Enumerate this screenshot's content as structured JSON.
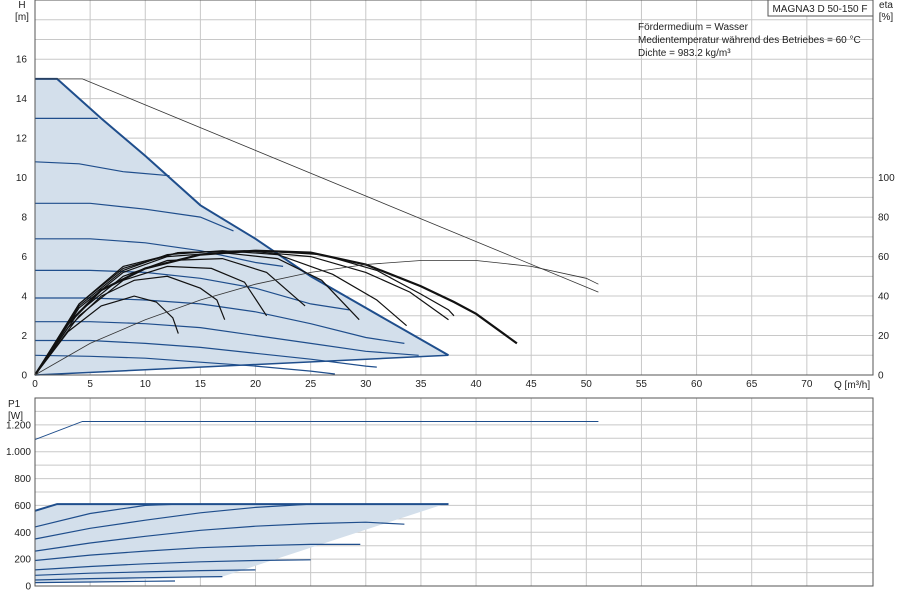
{
  "model": "MAGNA3 D 50-150 F",
  "info_lines": [
    "Fördermedium = Wasser",
    "Medientemperatur während des Betriebes = 60 °C",
    "Dichte = 983.2 kg/m³"
  ],
  "colors": {
    "curve": "#1f4e8c",
    "fill": "#d3dfeb",
    "eff": "#111111",
    "grid": "#c8c8c8"
  },
  "chart_data": [
    {
      "type": "line",
      "y_title": "H",
      "y_unit": "[m]",
      "y2_title": "eta",
      "y2_unit": "[%]",
      "x_title": "Q [m³/h]",
      "xlim": [
        0,
        76
      ],
      "ylim": [
        0,
        19
      ],
      "y2lim": [
        0,
        190
      ],
      "x_ticks": [
        0,
        5,
        10,
        15,
        20,
        25,
        30,
        35,
        40,
        45,
        50,
        55,
        60,
        65,
        70
      ],
      "y_ticks": [
        0,
        2,
        4,
        6,
        8,
        10,
        12,
        14,
        16
      ],
      "y2_ticks": [
        0,
        20,
        40,
        60,
        80,
        100
      ],
      "envelope": {
        "top": [
          [
            0,
            15
          ],
          [
            2,
            15
          ],
          [
            6,
            13
          ],
          [
            10,
            11.1
          ],
          [
            15,
            8.6
          ],
          [
            20,
            6.9
          ],
          [
            25,
            5.0
          ],
          [
            30,
            3.4
          ],
          [
            37.5,
            1.0
          ]
        ],
        "bottom": [
          [
            0,
            0
          ],
          [
            37.5,
            1.0
          ]
        ]
      },
      "speed_curves": [
        {
          "points": [
            [
              0,
              13.0
            ],
            [
              3,
              13.0
            ],
            [
              5.7,
              13.0
            ]
          ]
        },
        {
          "points": [
            [
              0,
              10.8
            ],
            [
              4,
              10.7
            ],
            [
              8,
              10.3
            ],
            [
              12.2,
              10.1
            ]
          ]
        },
        {
          "points": [
            [
              0,
              8.7
            ],
            [
              5,
              8.7
            ],
            [
              10,
              8.4
            ],
            [
              15,
              8.0
            ],
            [
              18,
              7.3
            ]
          ]
        },
        {
          "points": [
            [
              0,
              6.9
            ],
            [
              5,
              6.9
            ],
            [
              10,
              6.7
            ],
            [
              15,
              6.3
            ],
            [
              20,
              5.7
            ],
            [
              22.5,
              5.5
            ]
          ]
        },
        {
          "points": [
            [
              0,
              5.3
            ],
            [
              5,
              5.3
            ],
            [
              10,
              5.2
            ],
            [
              15,
              4.9
            ],
            [
              20,
              4.4
            ],
            [
              25,
              3.6
            ],
            [
              28.5,
              3.3
            ]
          ]
        },
        {
          "points": [
            [
              0,
              3.9
            ],
            [
              5,
              3.9
            ],
            [
              10,
              3.8
            ],
            [
              15,
              3.6
            ],
            [
              20,
              3.2
            ],
            [
              25,
              2.6
            ],
            [
              30,
              1.9
            ],
            [
              33.5,
              1.6
            ]
          ]
        },
        {
          "points": [
            [
              0,
              2.7
            ],
            [
              5,
              2.7
            ],
            [
              10,
              2.6
            ],
            [
              15,
              2.4
            ],
            [
              20,
              2.0
            ],
            [
              25,
              1.6
            ],
            [
              30,
              1.2
            ],
            [
              34.8,
              1.0
            ]
          ]
        },
        {
          "points": [
            [
              0,
              1.75
            ],
            [
              5,
              1.75
            ],
            [
              10,
              1.6
            ],
            [
              15,
              1.4
            ],
            [
              20,
              1.1
            ],
            [
              25,
              0.8
            ],
            [
              30,
              0.45
            ],
            [
              31,
              0.4
            ]
          ]
        },
        {
          "points": [
            [
              0,
              1.0
            ],
            [
              5,
              0.95
            ],
            [
              10,
              0.85
            ],
            [
              15,
              0.65
            ],
            [
              20,
              0.45
            ],
            [
              25,
              0.2
            ],
            [
              27.2,
              0.05
            ]
          ]
        }
      ],
      "eta_curves": [
        {
          "points": [
            [
              0,
              0
            ],
            [
              3,
              22
            ],
            [
              6,
              35
            ],
            [
              9,
              40
            ],
            [
              11,
              37
            ],
            [
              12.5,
              29
            ],
            [
              13,
              21
            ]
          ]
        },
        {
          "points": [
            [
              0,
              0
            ],
            [
              3,
              24
            ],
            [
              6,
              40
            ],
            [
              9,
              48
            ],
            [
              12,
              50
            ],
            [
              15,
              44
            ],
            [
              16.5,
              38
            ],
            [
              17.2,
              28
            ]
          ]
        },
        {
          "points": [
            [
              0,
              0
            ],
            [
              4,
              30
            ],
            [
              8,
              48
            ],
            [
              12,
              55
            ],
            [
              16,
              54
            ],
            [
              19,
              47
            ],
            [
              21,
              30
            ]
          ]
        },
        {
          "points": [
            [
              0,
              0
            ],
            [
              4,
              32
            ],
            [
              8,
              50
            ],
            [
              12,
              58
            ],
            [
              17,
              59
            ],
            [
              21,
              52
            ],
            [
              24.5,
              35
            ]
          ]
        },
        {
          "points": [
            [
              0,
              0
            ],
            [
              4,
              34
            ],
            [
              8,
              52
            ],
            [
              12,
              60
            ],
            [
              17,
              62
            ],
            [
              22,
              59
            ],
            [
              26,
              48
            ],
            [
              29.4,
              28
            ]
          ]
        },
        {
          "points": [
            [
              0,
              0
            ],
            [
              4,
              35
            ],
            [
              8,
              53
            ],
            [
              12,
              61
            ],
            [
              17,
              63
            ],
            [
              22,
              61
            ],
            [
              27,
              51
            ],
            [
              31,
              38
            ],
            [
              33.7,
              25
            ]
          ]
        },
        {
          "points": [
            [
              0,
              0
            ],
            [
              4,
              36
            ],
            [
              8,
              54
            ],
            [
              13,
              62
            ],
            [
              19,
              63
            ],
            [
              25,
              60
            ],
            [
              30,
              52
            ],
            [
              34,
              42
            ],
            [
              37.5,
              28
            ]
          ]
        },
        {
          "points": [
            [
              0,
              0
            ],
            [
              4,
              36
            ],
            [
              8,
              55
            ],
            [
              13,
              62
            ],
            [
              20,
              63
            ],
            [
              26,
              61
            ],
            [
              31,
              53
            ],
            [
              35,
              41
            ],
            [
              37.5,
              33
            ],
            [
              38,
              30
            ]
          ]
        }
      ],
      "max_curve": {
        "points": [
          [
            0,
            0
          ],
          [
            3,
            26
          ],
          [
            6,
            43
          ],
          [
            10,
            54
          ],
          [
            15,
            61
          ],
          [
            20,
            63
          ],
          [
            25,
            62
          ],
          [
            30,
            56
          ],
          [
            35,
            45
          ],
          [
            38,
            37
          ],
          [
            40,
            31
          ],
          [
            43.7,
            16
          ]
        ]
      },
      "ref_head": {
        "points": [
          [
            0,
            15
          ],
          [
            4.3,
            15
          ],
          [
            51.1,
            4.2
          ]
        ]
      },
      "ref_eta": {
        "points": [
          [
            0,
            0
          ],
          [
            5,
            16
          ],
          [
            10,
            28
          ],
          [
            15,
            38
          ],
          [
            20,
            46
          ],
          [
            25,
            52
          ],
          [
            30,
            56
          ],
          [
            35,
            58
          ],
          [
            40,
            58
          ],
          [
            45,
            55
          ],
          [
            50,
            49
          ],
          [
            51.1,
            46
          ]
        ]
      }
    },
    {
      "type": "line",
      "y_title": "P1",
      "y_unit": "[W]",
      "xlim": [
        0,
        76
      ],
      "ylim": [
        0,
        1400
      ],
      "x_ticks": [
        0,
        5,
        10,
        15,
        20,
        25,
        30,
        35,
        40,
        45,
        50,
        55,
        60,
        65,
        70
      ],
      "y_ticks": [
        0,
        200,
        400,
        600,
        800,
        1000,
        1200
      ],
      "y_tick_labels": [
        "0",
        "200",
        "400",
        "600",
        "800",
        "1.000",
        "1.200"
      ],
      "envelope": {
        "top": [
          [
            0,
            560
          ],
          [
            2,
            610
          ],
          [
            37.5,
            610
          ]
        ],
        "bottom": [
          [
            0,
            20
          ],
          [
            17,
            70
          ],
          [
            37.5,
            620
          ]
        ]
      },
      "power_curves": [
        {
          "points": [
            [
              0,
              560
            ],
            [
              2,
              610
            ],
            [
              37.5,
              610
            ]
          ]
        },
        {
          "points": [
            [
              0,
              440
            ],
            [
              5,
              540
            ],
            [
              10,
              600
            ],
            [
              13,
              610
            ]
          ]
        },
        {
          "points": [
            [
              0,
              350
            ],
            [
              5,
              430
            ],
            [
              10,
              490
            ],
            [
              15,
              545
            ],
            [
              20,
              585
            ],
            [
              25,
              610
            ]
          ]
        },
        {
          "points": [
            [
              0,
              260
            ],
            [
              5,
              320
            ],
            [
              10,
              370
            ],
            [
              15,
              415
            ],
            [
              20,
              445
            ],
            [
              25,
              465
            ],
            [
              30,
              475
            ],
            [
              33.5,
              460
            ]
          ]
        },
        {
          "points": [
            [
              0,
              190
            ],
            [
              5,
              230
            ],
            [
              10,
              260
            ],
            [
              15,
              285
            ],
            [
              20,
              300
            ],
            [
              25,
              310
            ],
            [
              29.5,
              310
            ]
          ]
        },
        {
          "points": [
            [
              0,
              120
            ],
            [
              5,
              145
            ],
            [
              10,
              165
            ],
            [
              15,
              180
            ],
            [
              20,
              190
            ],
            [
              25,
              195
            ]
          ]
        },
        {
          "points": [
            [
              0,
              80
            ],
            [
              5,
              95
            ],
            [
              10,
              105
            ],
            [
              15,
              115
            ],
            [
              20,
              120
            ]
          ]
        },
        {
          "points": [
            [
              0,
              45
            ],
            [
              5,
              55
            ],
            [
              10,
              62
            ],
            [
              15,
              68
            ],
            [
              17,
              70
            ]
          ]
        },
        {
          "points": [
            [
              0,
              25
            ],
            [
              5,
              30
            ],
            [
              10,
              35
            ],
            [
              12.7,
              37
            ]
          ]
        }
      ],
      "ref_power": {
        "points": [
          [
            0,
            1090
          ],
          [
            4.3,
            1225
          ],
          [
            51.1,
            1225
          ]
        ]
      }
    }
  ]
}
